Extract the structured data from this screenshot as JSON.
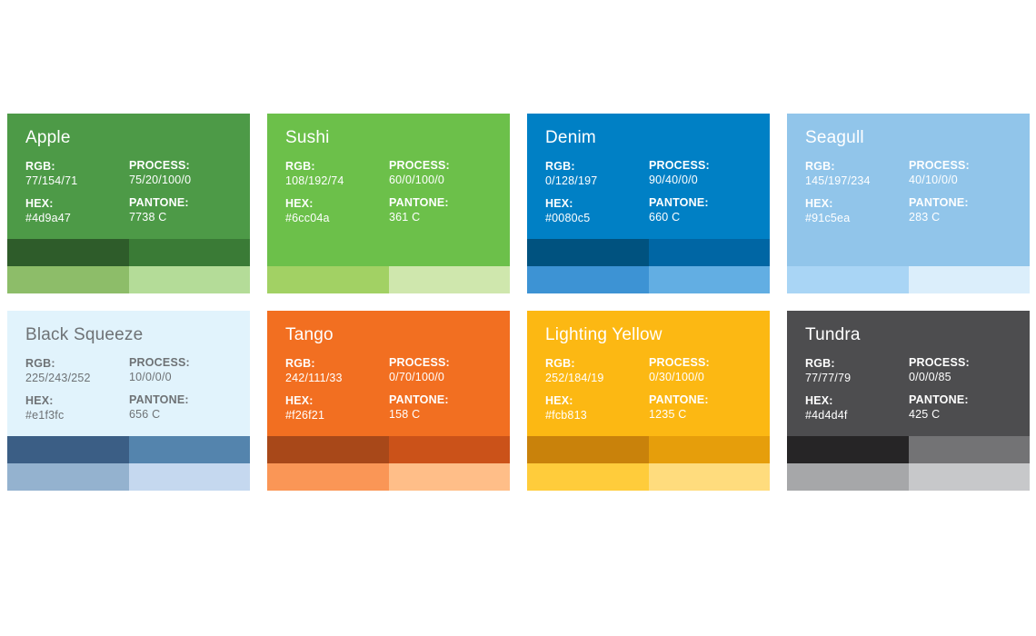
{
  "labels": {
    "rgb": "RGB:",
    "hex": "HEX:",
    "process": "PROCESS:",
    "pantone": "PANTONE:"
  },
  "colors": [
    {
      "name": "Apple",
      "rgb": "77/154/71",
      "hex": "#4d9a47",
      "process": "75/20/100/0",
      "pantone": "7738 C",
      "bg": "#4d9a47",
      "text": "#ffffff",
      "shades": [
        "#2e5c2a",
        "#3a7b36",
        "#8dbd69",
        "#b4dc98"
      ]
    },
    {
      "name": "Sushi",
      "rgb": "108/192/74",
      "hex": "#6cc04a",
      "process": "60/0/100/0",
      "pantone": "361 C",
      "bg": "#6cc04a",
      "text": "#ffffff",
      "shades": [
        "#6cc04a",
        "#6cc04a",
        "#a2d164",
        "#cfe7ad"
      ]
    },
    {
      "name": "Denim",
      "rgb": "0/128/197",
      "hex": "#0080c5",
      "process": "90/40/0/0",
      "pantone": "660 C",
      "bg": "#0080c5",
      "text": "#ffffff",
      "shades": [
        "#00527f",
        "#0066a4",
        "#3d93d4",
        "#62aee3"
      ]
    },
    {
      "name": "Seagull",
      "rgb": "145/197/234",
      "hex": "#91c5ea",
      "process": "40/10/0/0",
      "pantone": "283 C",
      "bg": "#91c5ea",
      "text": "#ffffff",
      "shades": [
        "#91c5ea",
        "#91c5ea",
        "#a9d5f5",
        "#dbeefb"
      ]
    },
    {
      "name": "Black Squeeze",
      "rgb": "225/243/252",
      "hex": "#e1f3fc",
      "process": "10/0/0/0",
      "pantone": "656 C",
      "bg": "#e1f3fc",
      "text": "#6e7275",
      "shades": [
        "#3b5e85",
        "#5484ad",
        "#94b2cf",
        "#c5d8ef"
      ]
    },
    {
      "name": "Tango",
      "rgb": "242/111/33",
      "hex": "#f26f21",
      "process": "0/70/100/0",
      "pantone": "158 C",
      "bg": "#f26f21",
      "text": "#ffffff",
      "shades": [
        "#a84819",
        "#cb5219",
        "#fa9656",
        "#ffbe88"
      ]
    },
    {
      "name": "Lighting Yellow",
      "rgb": "252/184/19",
      "hex": "#fcb813",
      "process": "0/30/100/0",
      "pantone": "1235 C",
      "bg": "#fcb813",
      "text": "#ffffff",
      "shades": [
        "#c9820b",
        "#e69e0b",
        "#ffcc3b",
        "#ffdc7d"
      ]
    },
    {
      "name": "Tundra",
      "rgb": "77/77/79",
      "hex": "#4d4d4f",
      "process": "0/0/0/85",
      "pantone": "425 C",
      "bg": "#4d4d4f",
      "text": "#ffffff",
      "shades": [
        "#262526",
        "#737375",
        "#a6a7a9",
        "#c7c8ca"
      ]
    }
  ]
}
